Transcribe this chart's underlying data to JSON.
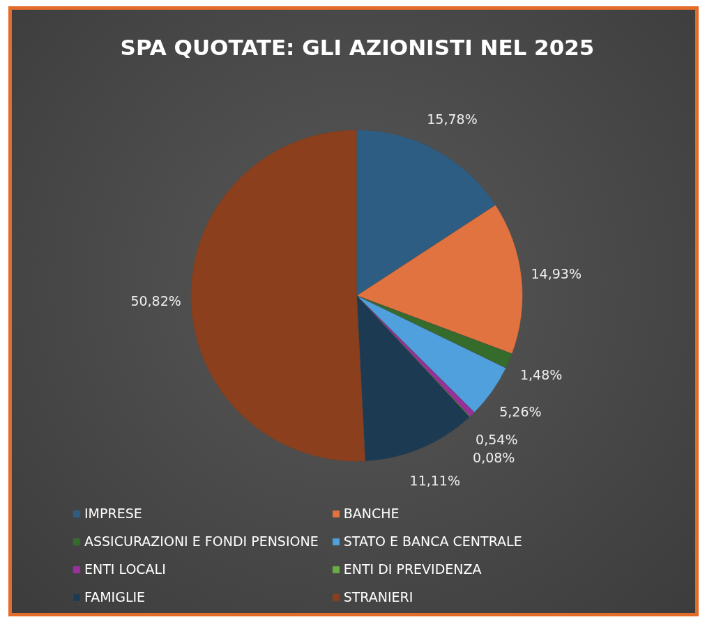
{
  "chart_data": {
    "type": "pie",
    "title": "SPA QUOTATE: GLI AZIONISTI NEL 2025",
    "categories": [
      "IMPRESE",
      "BANCHE",
      "ASSICURAZIONI E FONDI PENSIONE",
      "STATO E BANCA CENTRALE",
      "ENTI LOCALI",
      "ENTI DI PREVIDENZA",
      "FAMIGLIE",
      "STRANIERI"
    ],
    "values": [
      15.78,
      14.93,
      1.48,
      5.26,
      0.54,
      0.08,
      11.11,
      50.82
    ],
    "colors": [
      "#2e5d83",
      "#e07340",
      "#356b2b",
      "#4fa0dc",
      "#9b2f9b",
      "#6aad45",
      "#1c3a52",
      "#8c3f1c"
    ],
    "value_labels": [
      "15,78%",
      "14,93%",
      "1,48%",
      "5,26%",
      "0,54%",
      "0,08%",
      "11,11%",
      "50,82%"
    ],
    "legend": "bottom"
  }
}
